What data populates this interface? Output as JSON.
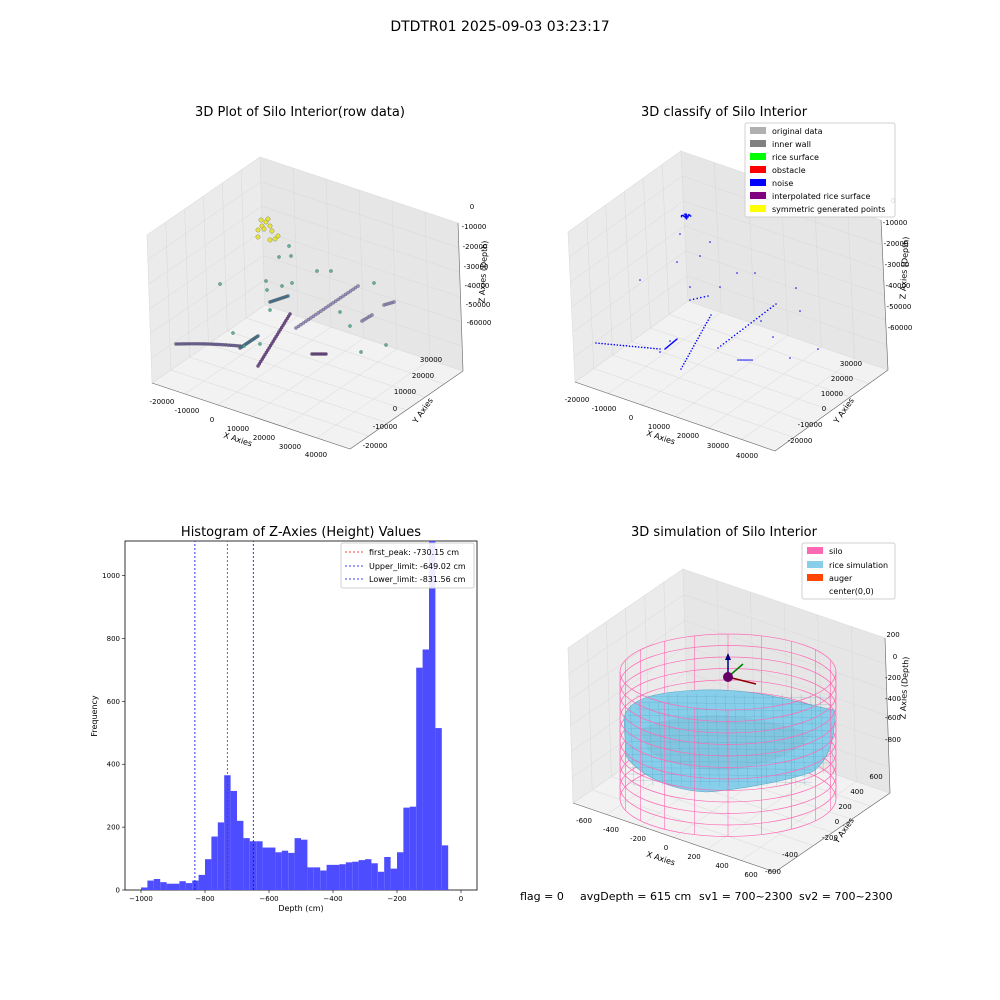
{
  "suptitle": "DTDTR01 2025-09-03 03:23:17",
  "footer": {
    "flag": "flag = 0",
    "avg": "avgDepth = 615 cm",
    "sv1": "sv1 = 700~2300",
    "sv2": "sv2 = 700~2300"
  },
  "colors": {
    "hist_bar": "#4d4dff",
    "first_peak": "#ff0000",
    "limit": "#0000ff",
    "silo": "#ff69b4",
    "rice": "#87ceeb",
    "auger": "#ff4500"
  },
  "chart_data": [
    {
      "type": "scatter3d",
      "title": "3D Plot of Silo Interior(row data)",
      "xlabel": "X Axies",
      "ylabel": "Y Axies",
      "zlabel": "Z Axies (Depth)",
      "xticks": [
        "-20000",
        "-10000",
        "0",
        "10000",
        "20000",
        "30000",
        "40000"
      ],
      "yticks": [
        "-20000",
        "-10000",
        "0",
        "10000",
        "20000",
        "30000"
      ],
      "zticks": [
        "0",
        "-10000",
        "-20000",
        "-30000",
        "-40000",
        "-50000",
        "-60000"
      ],
      "colormap": "viridis"
    },
    {
      "type": "scatter3d",
      "title": "3D classify of Silo Interior",
      "xlabel": "X Axies",
      "ylabel": "Y Axies",
      "zlabel": "Z Axies (Depth)",
      "xticks": [
        "-20000",
        "-10000",
        "0",
        "10000",
        "20000",
        "30000",
        "40000"
      ],
      "yticks": [
        "-20000",
        "-10000",
        "0",
        "10000",
        "20000",
        "30000"
      ],
      "zticks": [
        "0",
        "-10000",
        "-20000",
        "-30000",
        "-40000",
        "-50000",
        "-60000"
      ],
      "legend_position": "top-right",
      "legend": [
        {
          "label": "original data",
          "color": "#b0b0b0"
        },
        {
          "label": "inner wall",
          "color": "#808080"
        },
        {
          "label": "rice surface",
          "color": "#00ff00"
        },
        {
          "label": "obstacle",
          "color": "#ff0000"
        },
        {
          "label": "noise",
          "color": "#0000ff"
        },
        {
          "label": "interpolated rice surface",
          "color": "#800080"
        },
        {
          "label": "symmetric generated points",
          "color": "#ffff00"
        }
      ]
    },
    {
      "type": "bar",
      "title": "Histogram of Z-Axies (Height) Values",
      "xlabel": "Depth (cm)",
      "ylabel": "Frequency",
      "xlim": [
        -1050,
        50
      ],
      "ylim": [
        0,
        1110
      ],
      "xticks": [
        -1000,
        -800,
        -600,
        -400,
        -200,
        0
      ],
      "yticks": [
        0,
        200,
        400,
        600,
        800,
        1000
      ],
      "bin_start": -1000,
      "bin_width": 20,
      "values": [
        8,
        30,
        35,
        25,
        20,
        20,
        28,
        22,
        30,
        48,
        98,
        170,
        215,
        365,
        315,
        220,
        165,
        155,
        155,
        135,
        135,
        120,
        125,
        118,
        165,
        160,
        72,
        72,
        62,
        80,
        80,
        82,
        88,
        90,
        95,
        98,
        85,
        58,
        105,
        68,
        120,
        262,
        265,
        707,
        765,
        1110,
        515,
        142
      ],
      "legend_position": "top-right",
      "lines": [
        {
          "label": "first_peak: -730.15 cm",
          "x": -730.15,
          "color": "#ff0000"
        },
        {
          "label": "Upper_limit: -649.02 cm",
          "x": -649.02,
          "color": "#0000ff"
        },
        {
          "label": "Lower_limit: -831.56 cm",
          "x": -831.56,
          "color": "#0000ff"
        }
      ]
    },
    {
      "type": "surface3d",
      "title": "3D simulation of Silo Interior",
      "xlabel": "X Axies",
      "ylabel": "Y Axies",
      "zlabel": "Z Axies (Depth)",
      "xticks": [
        "-600",
        "-400",
        "-200",
        "0",
        "200",
        "400",
        "600"
      ],
      "yticks": [
        "-600",
        "-400",
        "-200",
        "0",
        "200",
        "400",
        "600"
      ],
      "zticks": [
        "200",
        "0",
        "-200",
        "-400",
        "-600",
        "-800"
      ],
      "legend_position": "top-right",
      "legend": [
        {
          "label": "silo",
          "color": "#ff69b4"
        },
        {
          "label": "rice simulation",
          "color": "#87ceeb"
        },
        {
          "label": "auger",
          "color": "#ff4500"
        },
        {
          "label": "center(0,0)",
          "color": ""
        }
      ]
    }
  ]
}
